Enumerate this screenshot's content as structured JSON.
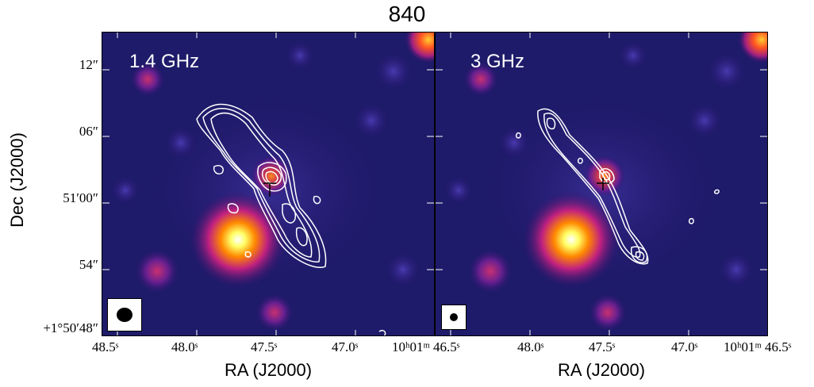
{
  "figure": {
    "title": "840",
    "ylabel": "Dec (J2000)",
    "xlabel": "RA (J2000)",
    "yticks": [
      "12″",
      "06″",
      "51′00″",
      "54″",
      "+1°50′48″"
    ],
    "xticks_left": [
      "48.5ˢ",
      "48.0ˢ",
      "47.5ˢ",
      "47.0ˢ",
      "10ʰ01ᵐ 46.5ˢ"
    ],
    "xticks_right": [
      "48.5ˢ",
      "48.0ˢ",
      "47.5ˢ",
      "47.0ˢ",
      "10ʰ01ᵐ 46.5ˢ"
    ]
  },
  "panels": [
    {
      "label": "1.4 GHz"
    },
    {
      "label": "3 GHz"
    }
  ]
}
